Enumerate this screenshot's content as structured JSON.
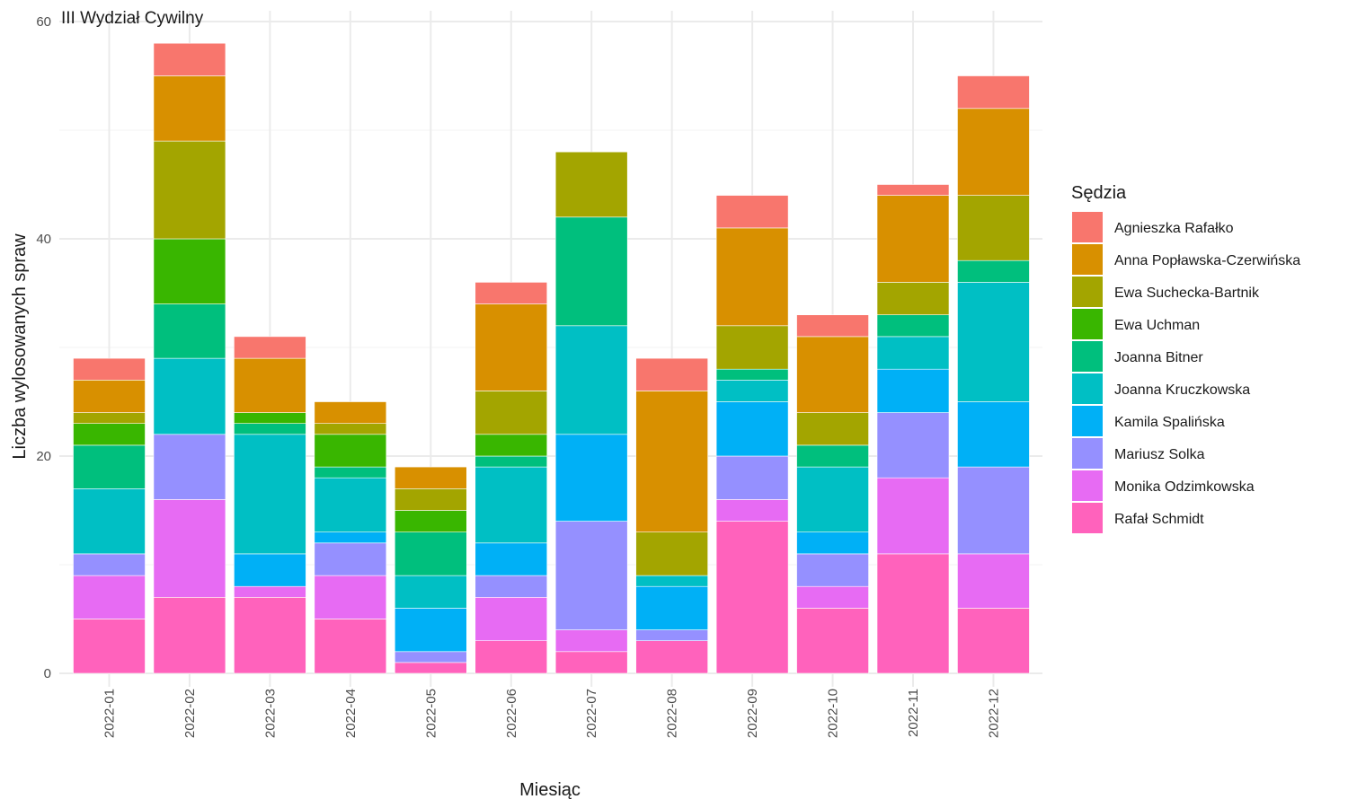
{
  "chart_data": {
    "type": "bar",
    "stacked": true,
    "title": "III Wydział Cywilny",
    "xlabel": "Miesiąc",
    "ylabel": "Liczba wylosowanych spraw",
    "ylim": [
      0,
      60
    ],
    "yticks": [
      0,
      20,
      40,
      60
    ],
    "grid": true,
    "legend_title": "Sędzia",
    "legend_position": "right",
    "categories": [
      "2022-01",
      "2022-02",
      "2022-03",
      "2022-04",
      "2022-05",
      "2022-06",
      "2022-07",
      "2022-08",
      "2022-09",
      "2022-10",
      "2022-11",
      "2022-12"
    ],
    "series": [
      {
        "name": "Agnieszka Rafałko",
        "color": "#F8766D",
        "values": [
          2,
          3,
          2,
          0,
          0,
          2,
          0,
          3,
          3,
          2,
          1,
          3
        ]
      },
      {
        "name": "Anna Popławska-Czerwińska",
        "color": "#D89000",
        "values": [
          3,
          6,
          5,
          2,
          2,
          8,
          0,
          13,
          9,
          7,
          8,
          8
        ]
      },
      {
        "name": "Ewa Suchecka-Bartnik",
        "color": "#A3A500",
        "values": [
          1,
          9,
          0,
          1,
          2,
          4,
          6,
          4,
          4,
          3,
          3,
          6
        ]
      },
      {
        "name": "Ewa Uchman",
        "color": "#39B600",
        "values": [
          2,
          6,
          1,
          3,
          2,
          2,
          0,
          0,
          0,
          0,
          0,
          0
        ]
      },
      {
        "name": "Joanna Bitner",
        "color": "#00BF7D",
        "values": [
          4,
          5,
          1,
          1,
          4,
          1,
          10,
          0,
          1,
          2,
          2,
          2
        ]
      },
      {
        "name": "Joanna Kruczkowska",
        "color": "#00BFC4",
        "values": [
          6,
          7,
          11,
          5,
          3,
          7,
          10,
          1,
          2,
          6,
          3,
          11
        ]
      },
      {
        "name": "Kamila Spalińska",
        "color": "#00B0F6",
        "values": [
          0,
          0,
          3,
          1,
          4,
          3,
          8,
          4,
          5,
          2,
          4,
          6
        ]
      },
      {
        "name": "Mariusz Solka",
        "color": "#9590FF",
        "values": [
          2,
          6,
          0,
          3,
          1,
          2,
          10,
          1,
          4,
          3,
          6,
          8
        ]
      },
      {
        "name": "Monika Odzimkowska",
        "color": "#E76BF3",
        "values": [
          4,
          9,
          1,
          4,
          0,
          4,
          2,
          0,
          2,
          2,
          7,
          5
        ]
      },
      {
        "name": "Rafał Schmidt",
        "color": "#FF62BC",
        "values": [
          5,
          7,
          7,
          5,
          1,
          3,
          2,
          3,
          14,
          6,
          11,
          6
        ]
      }
    ]
  }
}
